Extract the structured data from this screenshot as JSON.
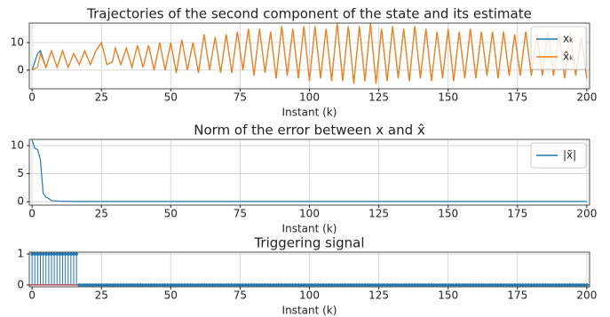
{
  "chart_data": [
    {
      "type": "line",
      "title": "Trajectories of the second component of the state and its estimate",
      "xlabel": "Instant (k)",
      "xlim": [
        -1,
        201
      ],
      "ylim": [
        -6.8,
        17.1
      ],
      "xticks": [
        0,
        25,
        50,
        75,
        100,
        125,
        150,
        175,
        200
      ],
      "yticks": [
        0,
        10
      ],
      "grid": true,
      "legend": "upper right",
      "x": [
        0,
        2,
        3,
        5,
        7,
        9,
        11,
        13,
        15,
        17,
        19,
        21,
        23,
        25,
        27,
        29,
        30,
        32,
        34,
        36,
        38,
        40,
        42,
        44,
        46,
        48,
        50,
        52,
        54,
        56,
        58,
        60,
        62,
        64,
        66,
        68,
        70,
        72,
        74,
        76,
        78,
        80,
        82,
        84,
        86,
        88,
        90,
        92,
        94,
        96,
        98,
        100,
        102,
        104,
        106,
        108,
        110,
        112,
        114,
        116,
        118,
        120,
        122,
        124,
        126,
        128,
        130,
        132,
        134,
        136,
        138,
        140,
        142,
        144,
        146,
        148,
        150,
        152,
        154,
        156,
        158,
        160,
        162,
        164,
        166,
        168,
        170,
        172,
        174,
        176,
        178,
        180,
        182,
        184,
        186,
        188,
        190,
        192,
        194,
        196,
        198,
        200
      ],
      "series": [
        {
          "name": "xₖ",
          "color": "#1f77b4",
          "values": [
            0,
            6,
            7,
            1,
            7,
            1,
            7,
            1,
            6,
            2,
            7,
            2,
            7,
            10,
            2,
            3,
            8,
            2,
            8,
            1,
            9,
            1,
            9,
            0,
            10,
            0,
            10,
            -1,
            11,
            0,
            10,
            -1,
            13,
            0,
            12,
            -1,
            13,
            -1,
            14,
            0,
            15,
            -2,
            15,
            -1,
            14,
            -3,
            16,
            -2,
            15,
            -3,
            16,
            -4,
            16,
            -3,
            15,
            -4,
            17,
            -4,
            16,
            -5,
            16,
            -4,
            17,
            -5,
            15,
            -4,
            16,
            -3,
            15,
            -4,
            16,
            -3,
            15,
            -4,
            14,
            -3,
            15,
            -4,
            14,
            -3,
            15,
            -3,
            14,
            -2,
            14,
            -3,
            14,
            -2,
            13,
            -2,
            14,
            -2,
            13,
            -2,
            14,
            -2,
            13,
            -3,
            14,
            -2,
            12,
            -3
          ]
        },
        {
          "name": "x̂ₖ",
          "color": "#ff7f0e",
          "values": [
            0,
            1,
            6,
            1,
            7,
            1,
            7,
            1,
            6,
            2,
            7,
            2,
            7,
            10,
            2,
            3,
            8,
            2,
            8,
            1,
            9,
            1,
            9,
            0,
            10,
            0,
            10,
            -1,
            11,
            0,
            10,
            -1,
            13,
            0,
            12,
            -1,
            13,
            -1,
            14,
            0,
            15,
            -2,
            15,
            -1,
            14,
            -3,
            16,
            -2,
            15,
            -3,
            16,
            -4,
            16,
            -3,
            15,
            -4,
            17,
            -4,
            16,
            -5,
            16,
            -4,
            17,
            -5,
            15,
            -4,
            16,
            -3,
            15,
            -4,
            16,
            -3,
            15,
            -4,
            14,
            -3,
            15,
            -4,
            14,
            -3,
            15,
            -3,
            14,
            -2,
            14,
            -3,
            14,
            -2,
            13,
            -2,
            14,
            -2,
            13,
            -2,
            14,
            -2,
            13,
            -3,
            14,
            -2,
            12,
            -3
          ]
        }
      ]
    },
    {
      "type": "line",
      "title": "Norm of the error between x and x̂",
      "xlabel": "Instant (k)",
      "xlim": [
        -1,
        201
      ],
      "ylim": [
        -0.6,
        11.1
      ],
      "xticks": [
        0,
        25,
        50,
        75,
        100,
        125,
        150,
        175,
        200
      ],
      "yticks": [
        0,
        5,
        10
      ],
      "grid": true,
      "legend": "upper right",
      "x": [
        0,
        1,
        2,
        3,
        4,
        5,
        6,
        7,
        10,
        15,
        200
      ],
      "series": [
        {
          "name": "|x̃|",
          "color": "#1f77b4",
          "values": [
            11,
            9.5,
            9.3,
            7.5,
            1.5,
            0.8,
            0.6,
            0.2,
            0.1,
            0.05,
            0.05
          ]
        }
      ]
    },
    {
      "type": "stem",
      "title": "Triggering signal",
      "xlabel": "Instant (k)",
      "xlim": [
        -1,
        201
      ],
      "ylim": [
        -0.06,
        1.06
      ],
      "xticks": [
        0,
        25,
        50,
        75,
        100,
        125,
        150,
        175,
        200
      ],
      "yticks": [
        0,
        1
      ],
      "grid": true,
      "baseline_color": "#d62728",
      "x": [
        0,
        1,
        2,
        3,
        4,
        5,
        6,
        7,
        8,
        9,
        10,
        11,
        12,
        13,
        14,
        15,
        16,
        17,
        18,
        19,
        20,
        21,
        22,
        23,
        24,
        25,
        26,
        27,
        28,
        29,
        30,
        31,
        32,
        33,
        34,
        35,
        36,
        37,
        38,
        39,
        40,
        41,
        42,
        43,
        44,
        45,
        46,
        47,
        48,
        49,
        50,
        51,
        52,
        53,
        54,
        55,
        56,
        57,
        58,
        59,
        60,
        61,
        62,
        63,
        64,
        65,
        66,
        67,
        68,
        69,
        70,
        71,
        72,
        73,
        74,
        75,
        76,
        77,
        78,
        79,
        80,
        81,
        82,
        83,
        84,
        85,
        86,
        87,
        88,
        89,
        90,
        91,
        92,
        93,
        94,
        95,
        96,
        97,
        98,
        99,
        100,
        101,
        102,
        103,
        104,
        105,
        106,
        107,
        108,
        109,
        110,
        111,
        112,
        113,
        114,
        115,
        116,
        117,
        118,
        119,
        120,
        121,
        122,
        123,
        124,
        125,
        126,
        127,
        128,
        129,
        130,
        131,
        132,
        133,
        134,
        135,
        136,
        137,
        138,
        139,
        140,
        141,
        142,
        143,
        144,
        145,
        146,
        147,
        148,
        149,
        150,
        151,
        152,
        153,
        154,
        155,
        156,
        157,
        158,
        159,
        160,
        161,
        162,
        163,
        164,
        165,
        166,
        167,
        168,
        169,
        170,
        171,
        172,
        173,
        174,
        175,
        176,
        177,
        178,
        179,
        180,
        181,
        182,
        183,
        184,
        185,
        186,
        187,
        188,
        189,
        190,
        191,
        192,
        193,
        194,
        195,
        196,
        197,
        198,
        199,
        200
      ],
      "series": [
        {
          "color": "#1f77b4",
          "values": [
            1,
            1,
            1,
            1,
            1,
            1,
            1,
            1,
            1,
            1,
            1,
            1,
            1,
            1,
            1,
            1,
            1,
            0,
            0,
            0,
            0,
            0,
            0,
            0,
            0,
            0,
            0,
            0,
            0,
            0,
            0,
            0,
            0,
            0,
            0,
            0,
            0,
            0,
            0,
            0,
            0,
            0,
            0,
            0,
            0,
            0,
            0,
            0,
            0,
            0,
            0,
            0,
            0,
            0,
            0,
            0,
            0,
            0,
            0,
            0,
            0,
            0,
            0,
            0,
            0,
            0,
            0,
            0,
            0,
            0,
            0,
            0,
            0,
            0,
            0,
            0,
            0,
            0,
            0,
            0,
            0,
            0,
            0,
            0,
            0,
            0,
            0,
            0,
            0,
            0,
            0,
            0,
            0,
            0,
            0,
            0,
            0,
            0,
            0,
            0,
            0,
            0,
            0,
            0,
            0,
            0,
            0,
            0,
            0,
            0,
            0,
            0,
            0,
            0,
            0,
            0,
            0,
            0,
            0,
            0,
            0,
            0,
            0,
            0,
            0,
            0,
            0,
            0,
            0,
            0,
            0,
            0,
            0,
            0,
            0,
            0,
            0,
            0,
            0,
            0,
            0,
            0,
            0,
            0,
            0,
            0,
            0,
            0,
            0,
            0,
            0,
            0,
            0,
            0,
            0,
            0,
            0,
            0,
            0,
            0,
            0,
            0,
            0,
            0,
            0,
            0,
            0,
            0,
            0,
            0,
            0,
            0,
            0,
            0,
            0,
            0,
            0,
            0,
            0,
            0,
            0,
            0,
            0,
            0,
            0,
            0,
            0,
            0,
            0,
            0,
            0,
            0,
            0,
            0,
            0,
            0,
            0,
            0,
            0,
            0,
            0
          ]
        }
      ]
    }
  ]
}
